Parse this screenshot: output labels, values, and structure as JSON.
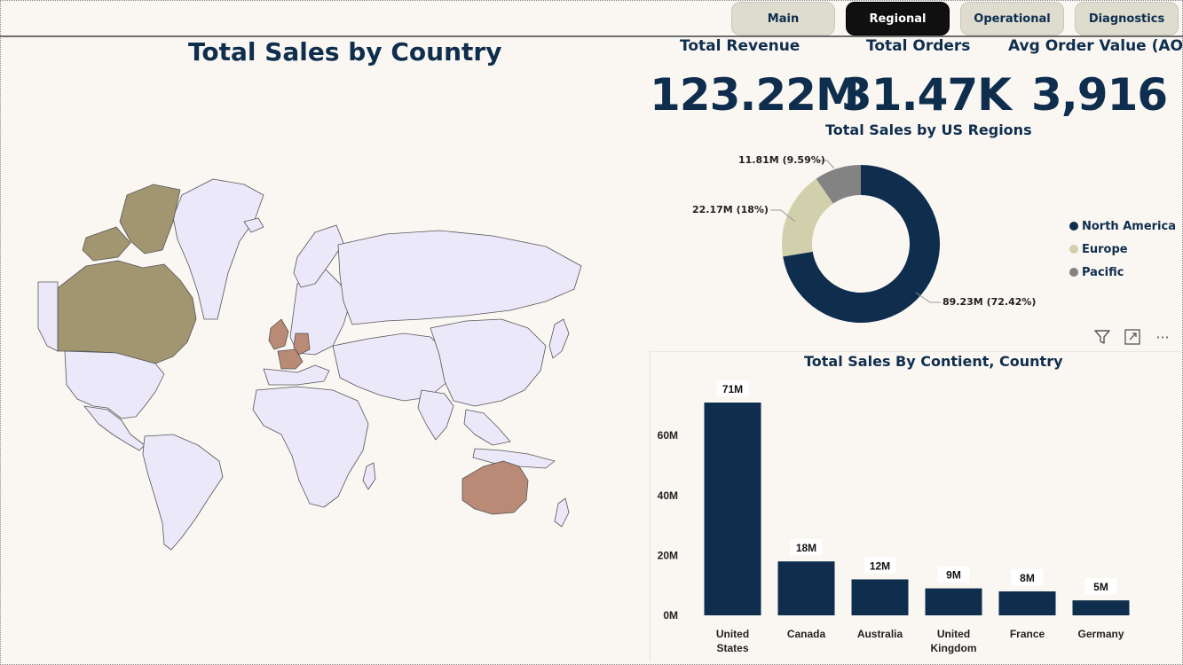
{
  "nav": {
    "tabs": [
      {
        "label": "Main",
        "active": false
      },
      {
        "label": "Regional",
        "active": true
      },
      {
        "label": "Operational",
        "active": false
      },
      {
        "label": "Diagnostics",
        "active": false
      }
    ]
  },
  "map": {
    "title": "Total Sales by Country"
  },
  "kpis": [
    {
      "label": "Total Revenue",
      "value": "123.22M"
    },
    {
      "label": "Total Orders",
      "value": "31.47K"
    },
    {
      "label": "Avg Order Value (AOV)",
      "value": "3,916"
    }
  ],
  "donut": {
    "title": "Total Sales by US Regions",
    "slices": [
      {
        "name": "North America",
        "value": 89.23,
        "label": "89.23M (72.42%)",
        "color": "#0f2e4d"
      },
      {
        "name": "Europe",
        "value": 22.17,
        "label": "22.17M (18%)",
        "color": "#d1d0ac"
      },
      {
        "name": "Pacific",
        "value": 11.81,
        "label": "11.81M (9.59%)",
        "color": "#838383"
      }
    ]
  },
  "colors": {
    "navy": "#0f2e4d",
    "map_default": "#ebe8fa",
    "map_americas": "#a19670",
    "map_europe_aus": "#b98a75"
  },
  "chart_data": {
    "type": "bar",
    "title": "Total Sales By Contient, Country",
    "categories": [
      "United States",
      "Canada",
      "Australia",
      "United Kingdom",
      "France",
      "Germany"
    ],
    "category_lines": [
      [
        "United",
        "States"
      ],
      [
        "Canada"
      ],
      [
        "Australia"
      ],
      [
        "United",
        "Kingdom"
      ],
      [
        "France"
      ],
      [
        "Germany"
      ]
    ],
    "values": [
      71,
      18,
      12,
      9,
      8,
      5
    ],
    "data_labels": [
      "71M",
      "18M",
      "12M",
      "9M",
      "8M",
      "5M"
    ],
    "yticks": [
      0,
      20,
      40,
      60
    ],
    "ytick_labels": [
      "0M",
      "20M",
      "40M",
      "60M"
    ],
    "ylim": [
      0,
      71
    ],
    "grid": false,
    "color": "#0f2e4d"
  },
  "toolbar": {
    "filter_icon": "filter-icon",
    "focus_icon": "expand-icon",
    "more_icon": "more-options-icon",
    "more_glyph": "···"
  }
}
